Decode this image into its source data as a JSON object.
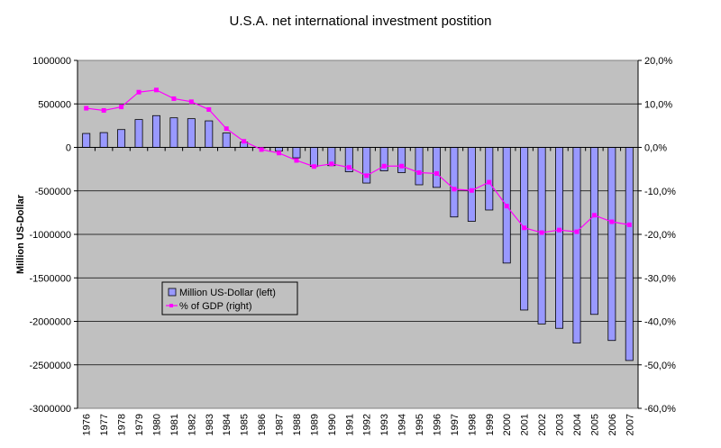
{
  "chart_data": {
    "type": "bar",
    "title": "U.S.A. net international investment postition",
    "ylabel": "Million US-Dollar",
    "y2label": "",
    "ylim": [
      -3000000,
      1000000
    ],
    "y2lim": [
      -60,
      20
    ],
    "yticks": [
      "1000000",
      "500000",
      "0",
      "-500000",
      "-1000000",
      "-1500000",
      "-2000000",
      "-2500000",
      "-3000000"
    ],
    "y2ticks": [
      "20,0%",
      "10,0%",
      "0,0%",
      "-10,0%",
      "-20,0%",
      "-30,0%",
      "-40,0%",
      "-50,0%",
      "-60,0%"
    ],
    "grid": true,
    "legend_position": "lower-left-inside",
    "categories": [
      "1976",
      "1977",
      "1978",
      "1979",
      "1980",
      "1981",
      "1982",
      "1983",
      "1984",
      "1985",
      "1986",
      "1987",
      "1988",
      "1989",
      "1990",
      "1991",
      "1992",
      "1993",
      "1994",
      "1995",
      "1996",
      "1997",
      "1998",
      "1999",
      "2000",
      "2001",
      "2002",
      "2003",
      "2004",
      "2005",
      "2006",
      "2007"
    ],
    "series": [
      {
        "name": "Million US-Dollar (left)",
        "type": "bar",
        "axis": "left",
        "color": "#9999ff",
        "values": [
          160000,
          170000,
          205000,
          320000,
          365000,
          340000,
          330000,
          305000,
          165000,
          60000,
          -5000,
          -40000,
          -120000,
          -220000,
          -210000,
          -280000,
          -410000,
          -270000,
          -290000,
          -430000,
          -460000,
          -800000,
          -850000,
          -720000,
          -1330000,
          -1870000,
          -2030000,
          -2080000,
          -2250000,
          -1920000,
          -2220000,
          -2450000
        ]
      },
      {
        "name": "% of GDP (right)",
        "type": "line",
        "axis": "right",
        "color": "#ff00ff",
        "values": [
          9.0,
          8.5,
          9.3,
          12.7,
          13.2,
          11.2,
          10.5,
          8.7,
          4.3,
          1.4,
          -0.5,
          -1.3,
          -3.0,
          -4.4,
          -3.8,
          -4.6,
          -6.5,
          -4.3,
          -4.3,
          -5.8,
          -6.0,
          -9.6,
          -9.9,
          -8.0,
          -13.5,
          -18.5,
          -19.6,
          -19.0,
          -19.4,
          -15.6,
          -17.1,
          -17.8
        ]
      }
    ]
  }
}
